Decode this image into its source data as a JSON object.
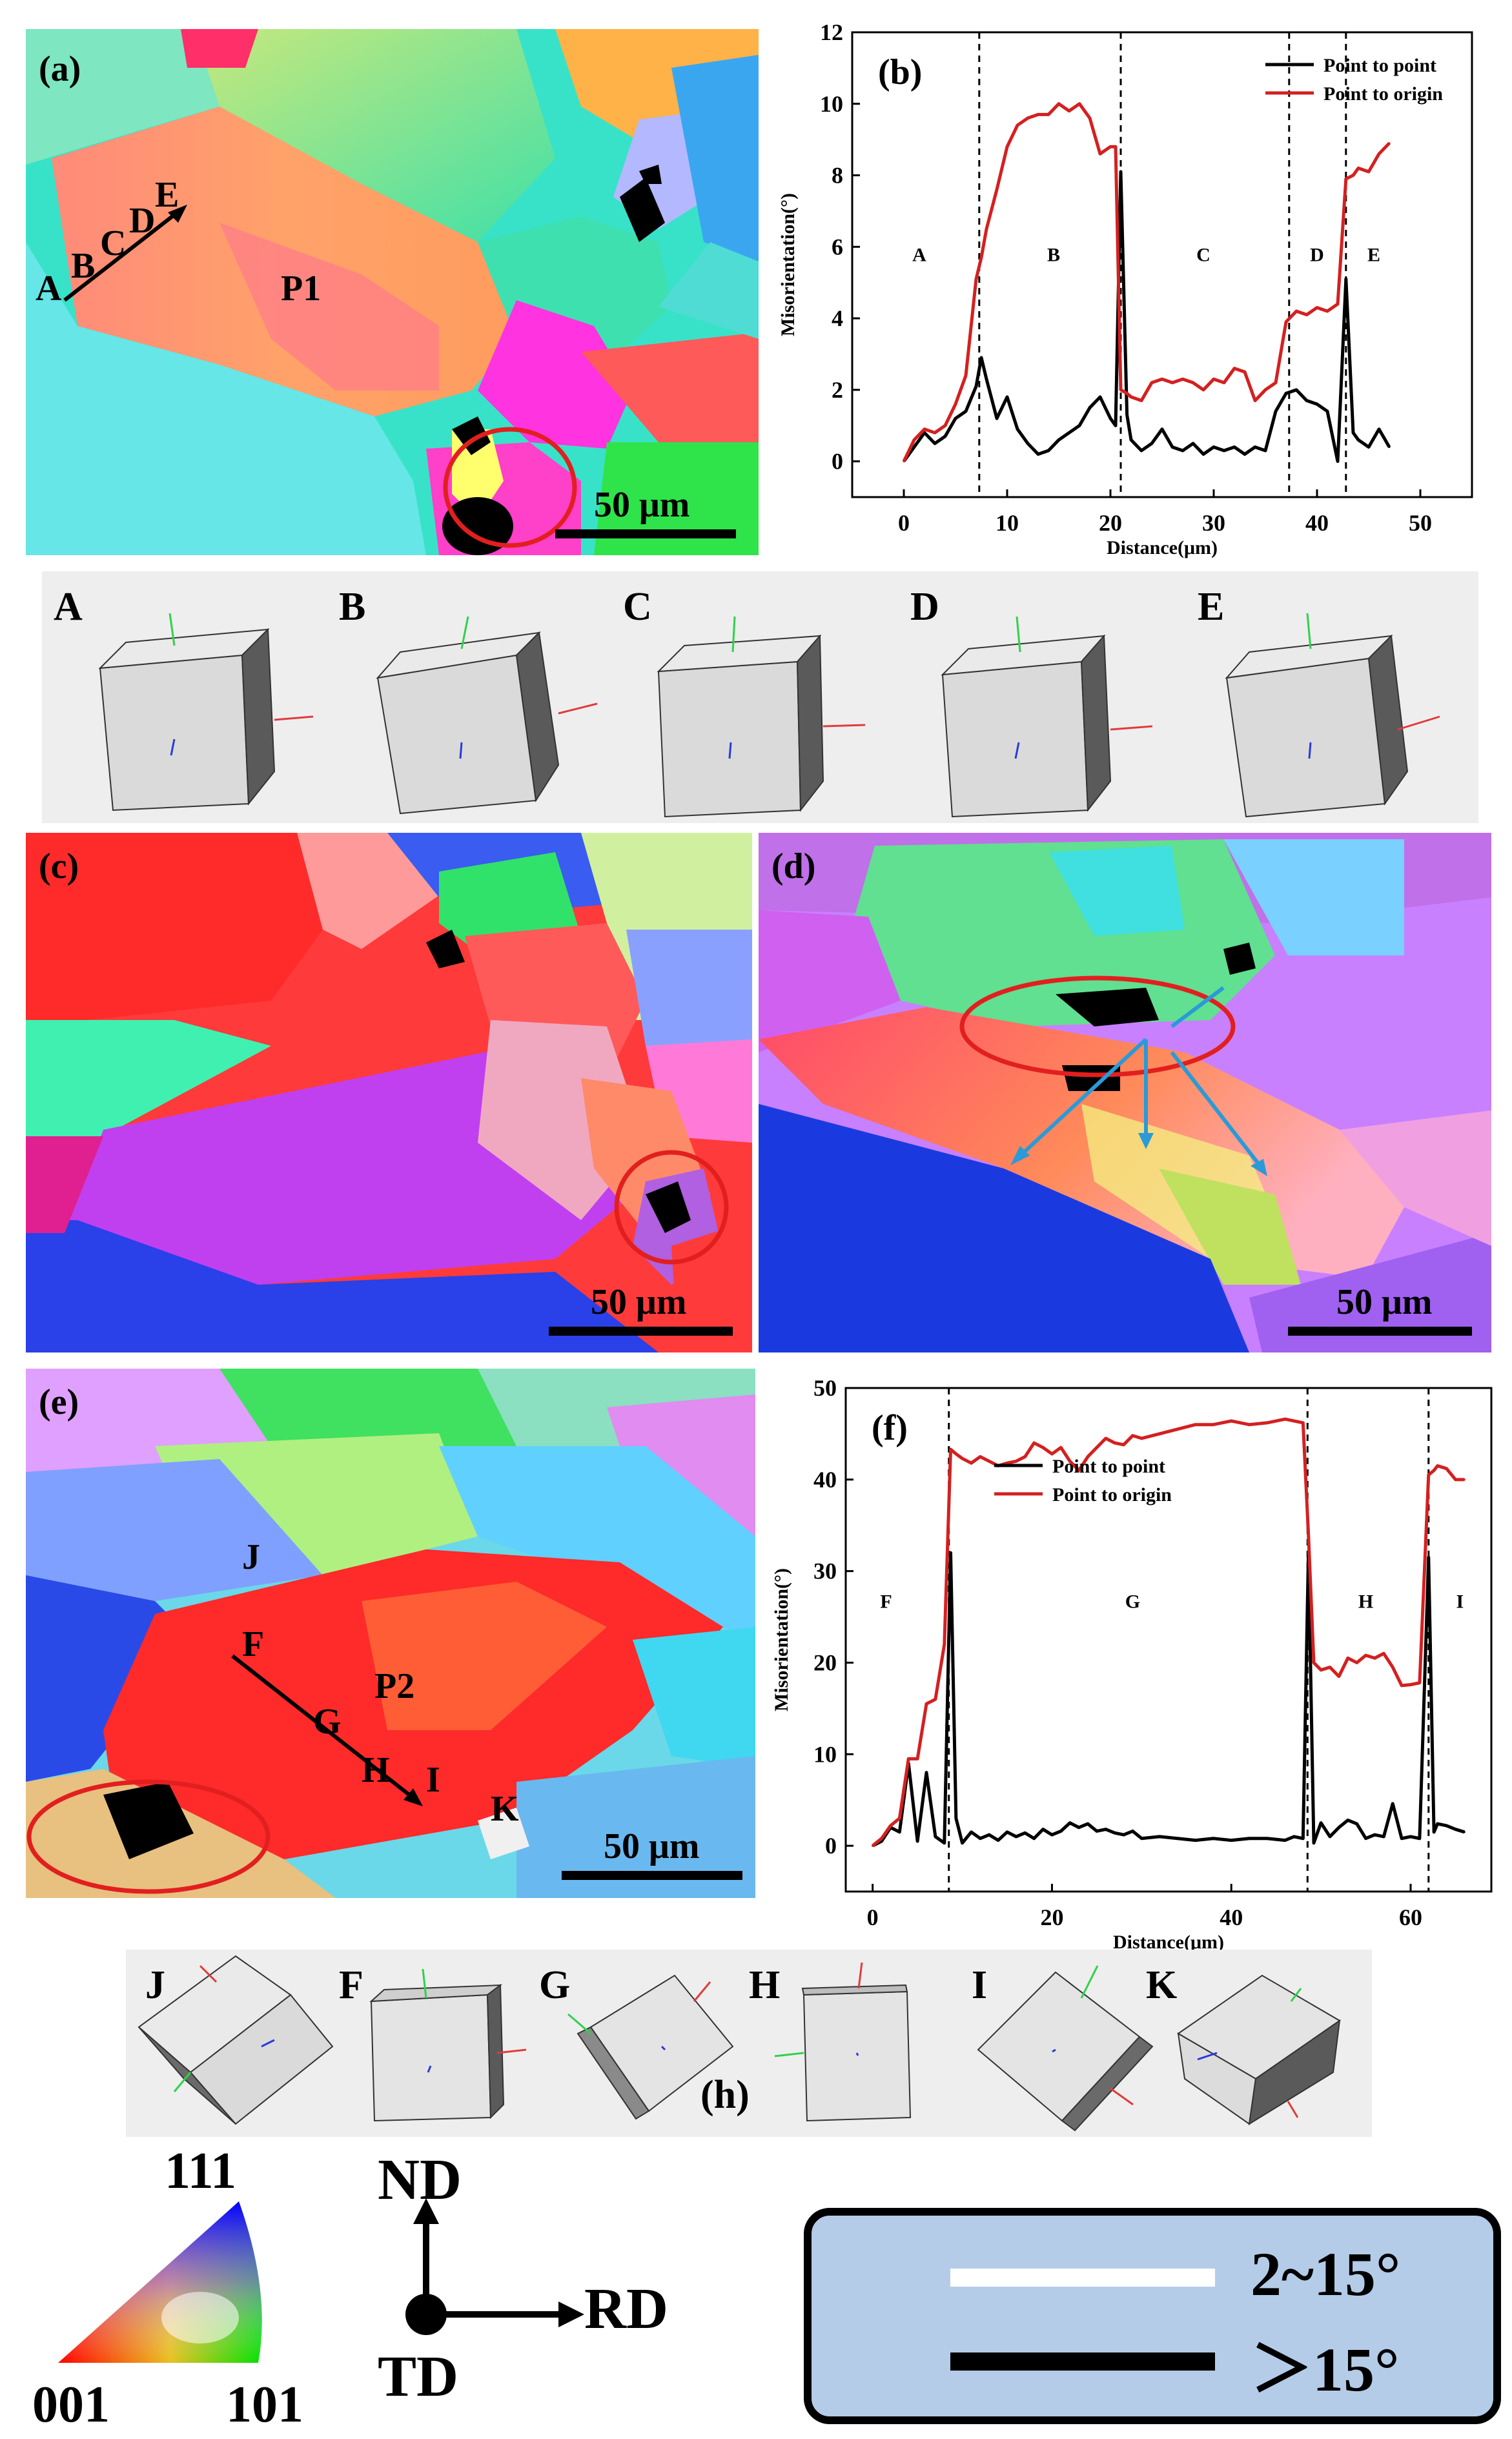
{
  "panels": {
    "a": "(a)",
    "b": "(b)",
    "c": "(c)",
    "d": "(d)",
    "e": "(e)",
    "f": "(f)",
    "h": "(h)"
  },
  "map_a": {
    "points": [
      "A",
      "B",
      "C",
      "D",
      "E"
    ],
    "grain": "P1",
    "scale": "50 μm"
  },
  "map_c": {
    "scale": "50 μm"
  },
  "map_d": {
    "scale": "50 μm"
  },
  "map_e": {
    "points": [
      "J",
      "F",
      "G",
      "H",
      "I",
      "K"
    ],
    "grain": "P2",
    "scale": "50 μm"
  },
  "cubes_row1": [
    "A",
    "B",
    "C",
    "D",
    "E"
  ],
  "cubes_row2": [
    "J",
    "F",
    "G",
    "H",
    "I",
    "K"
  ],
  "ipf": {
    "top": "111",
    "left": "001",
    "right": "101"
  },
  "axes": {
    "nd": "ND",
    "rd": "RD",
    "td": "TD"
  },
  "boundary_legend": {
    "low": "2~15°",
    "high": "＞15°"
  },
  "colors": {
    "point_to_point": "#000000",
    "point_to_origin": "#d42020",
    "legend_bg": "#b5cce8"
  },
  "chart_data": [
    {
      "type": "line",
      "panel": "(b)",
      "xlabel": "Distance(μm)",
      "ylabel": "Misorientation(°)",
      "xlim": [
        -5,
        55
      ],
      "ylim": [
        -1,
        12
      ],
      "xticks": [
        0,
        10,
        20,
        30,
        40,
        50
      ],
      "yticks": [
        0,
        2,
        4,
        6,
        8,
        10,
        12
      ],
      "dashed_lines_x": [
        7.3,
        21.0,
        37.3,
        42.8
      ],
      "region_labels": [
        {
          "text": "A",
          "x": 1.5,
          "y": 5.6
        },
        {
          "text": "B",
          "x": 14.5,
          "y": 5.6
        },
        {
          "text": "C",
          "x": 29,
          "y": 5.6
        },
        {
          "text": "D",
          "x": 40,
          "y": 5.6
        },
        {
          "text": "E",
          "x": 45.5,
          "y": 5.6
        }
      ],
      "legend": "top-right",
      "series": [
        {
          "name": "Point to point",
          "color": "#000000",
          "x": [
            0,
            1,
            2,
            3,
            4,
            5,
            6,
            7,
            7.5,
            8,
            9,
            10,
            11,
            12,
            13,
            14,
            15,
            16,
            17,
            18,
            19,
            20,
            20.5,
            21,
            21.6,
            22,
            23,
            24,
            25,
            26,
            27,
            28,
            29,
            30,
            31,
            32,
            33,
            34,
            35,
            36,
            37,
            38,
            39,
            40,
            41,
            42,
            42.8,
            43.5,
            44,
            45,
            46,
            47
          ],
          "y": [
            0,
            0.4,
            0.8,
            0.5,
            0.7,
            1.2,
            1.4,
            2.1,
            2.9,
            2.3,
            1.2,
            1.8,
            0.9,
            0.5,
            0.2,
            0.3,
            0.6,
            0.8,
            1.0,
            1.5,
            1.8,
            1.2,
            1.0,
            8.1,
            1.3,
            0.6,
            0.3,
            0.5,
            0.9,
            0.4,
            0.3,
            0.5,
            0.2,
            0.4,
            0.3,
            0.4,
            0.2,
            0.4,
            0.3,
            1.4,
            1.9,
            2.0,
            1.7,
            1.6,
            1.4,
            0.0,
            5.1,
            0.8,
            0.6,
            0.4,
            0.9,
            0.4
          ]
        },
        {
          "name": "Point to origin",
          "color": "#d42020",
          "x": [
            0,
            1,
            2,
            3,
            4,
            5,
            6,
            7,
            7.5,
            8,
            9,
            10,
            11,
            12,
            13,
            14,
            15,
            16,
            17,
            18,
            19,
            20,
            20.5,
            21,
            21.6,
            22,
            23,
            24,
            25,
            26,
            27,
            28,
            29,
            30,
            31,
            32,
            33,
            34,
            35,
            36,
            37,
            38,
            39,
            40,
            41,
            42,
            42.8,
            43.5,
            44,
            45,
            46,
            47
          ],
          "y": [
            0,
            0.6,
            0.9,
            0.8,
            1.0,
            1.6,
            2.4,
            5.1,
            5.7,
            6.5,
            7.6,
            8.8,
            9.4,
            9.6,
            9.7,
            9.7,
            10.0,
            9.8,
            10.0,
            9.6,
            8.6,
            8.8,
            8.8,
            2.0,
            1.9,
            1.8,
            1.7,
            2.2,
            2.3,
            2.2,
            2.3,
            2.2,
            2.0,
            2.3,
            2.2,
            2.6,
            2.5,
            1.7,
            2.0,
            2.2,
            3.9,
            4.2,
            4.1,
            4.3,
            4.2,
            4.4,
            7.9,
            8.0,
            8.2,
            8.1,
            8.6,
            8.9
          ]
        }
      ]
    },
    {
      "type": "line",
      "panel": "(f)",
      "xlabel": "Distance(μm)",
      "ylabel": "Misorientation(°)",
      "xlim": [
        -3,
        69
      ],
      "ylim": [
        -5,
        50
      ],
      "xticks": [
        0,
        20,
        40,
        60
      ],
      "yticks": [
        0,
        10,
        20,
        30,
        40,
        50
      ],
      "dashed_lines_x": [
        8.5,
        48.5,
        62.0
      ],
      "region_labels": [
        {
          "text": "F",
          "x": 1.5,
          "y": 26
        },
        {
          "text": "G",
          "x": 29,
          "y": 26
        },
        {
          "text": "H",
          "x": 55,
          "y": 26
        },
        {
          "text": "I",
          "x": 65.5,
          "y": 26
        }
      ],
      "legend": "upper-middle",
      "series": [
        {
          "name": "Point to point",
          "color": "#000000",
          "x": [
            0,
            1,
            2,
            3,
            4,
            5,
            6,
            7,
            8,
            8.7,
            9.3,
            10,
            11,
            12,
            13,
            14,
            15,
            16,
            17,
            18,
            19,
            20,
            21,
            22,
            23,
            24,
            25,
            26,
            27,
            28,
            29,
            30,
            32,
            34,
            36,
            38,
            40,
            42,
            44,
            46,
            47,
            48,
            48.6,
            49.2,
            50,
            51,
            52,
            53,
            54,
            55,
            56,
            57,
            58,
            59,
            60,
            61,
            62,
            62.6,
            63,
            64,
            65,
            66
          ],
          "y": [
            0,
            0.5,
            2,
            1.5,
            9,
            0.5,
            8,
            1,
            0.3,
            32,
            3,
            0.3,
            1.5,
            0.8,
            1.2,
            0.6,
            1.5,
            1.0,
            1.4,
            0.8,
            1.8,
            1.2,
            1.6,
            2.5,
            2.0,
            2.4,
            1.6,
            1.8,
            1.4,
            1.2,
            1.6,
            0.8,
            1.0,
            0.8,
            0.6,
            0.8,
            0.6,
            0.8,
            0.8,
            0.6,
            1.0,
            0.8,
            32,
            0.3,
            2.5,
            1.0,
            2.0,
            2.8,
            2.4,
            0.8,
            1.2,
            1.0,
            4.6,
            0.8,
            1.0,
            0.8,
            31.5,
            1.5,
            2.4,
            2.2,
            1.8,
            1.5
          ]
        },
        {
          "name": "Point to origin",
          "color": "#d42020",
          "x": [
            0,
            1,
            2,
            3,
            4,
            5,
            6,
            7,
            8,
            8.7,
            9.3,
            10,
            11,
            12,
            13,
            14,
            15,
            16,
            17,
            18,
            19,
            20,
            21,
            22,
            23,
            24,
            25,
            26,
            27,
            28,
            29,
            30,
            32,
            34,
            36,
            38,
            40,
            42,
            44,
            46,
            47,
            48,
            48.6,
            49.2,
            50,
            51,
            52,
            53,
            54,
            55,
            56,
            57,
            58,
            59,
            60,
            61,
            62,
            62.6,
            63,
            64,
            65,
            66
          ],
          "y": [
            0,
            0.8,
            2.2,
            3,
            9.5,
            9.5,
            15.5,
            16,
            22,
            43.3,
            42.8,
            42.3,
            41.8,
            42.5,
            42.0,
            41.5,
            41.8,
            42.0,
            42.5,
            44.0,
            43.5,
            42.8,
            43.5,
            42.0,
            41.0,
            42.5,
            43.5,
            44.5,
            44.0,
            43.8,
            44.8,
            44.5,
            45.0,
            45.5,
            46.0,
            46.0,
            46.4,
            46.0,
            46.2,
            46.6,
            46.4,
            46.2,
            34,
            20,
            19.2,
            19.5,
            18.5,
            20.5,
            20.0,
            20.8,
            20.5,
            21.0,
            19.5,
            17.5,
            17.6,
            17.8,
            40.5,
            41.0,
            41.5,
            41.2,
            40.0,
            40.0
          ]
        }
      ]
    }
  ]
}
